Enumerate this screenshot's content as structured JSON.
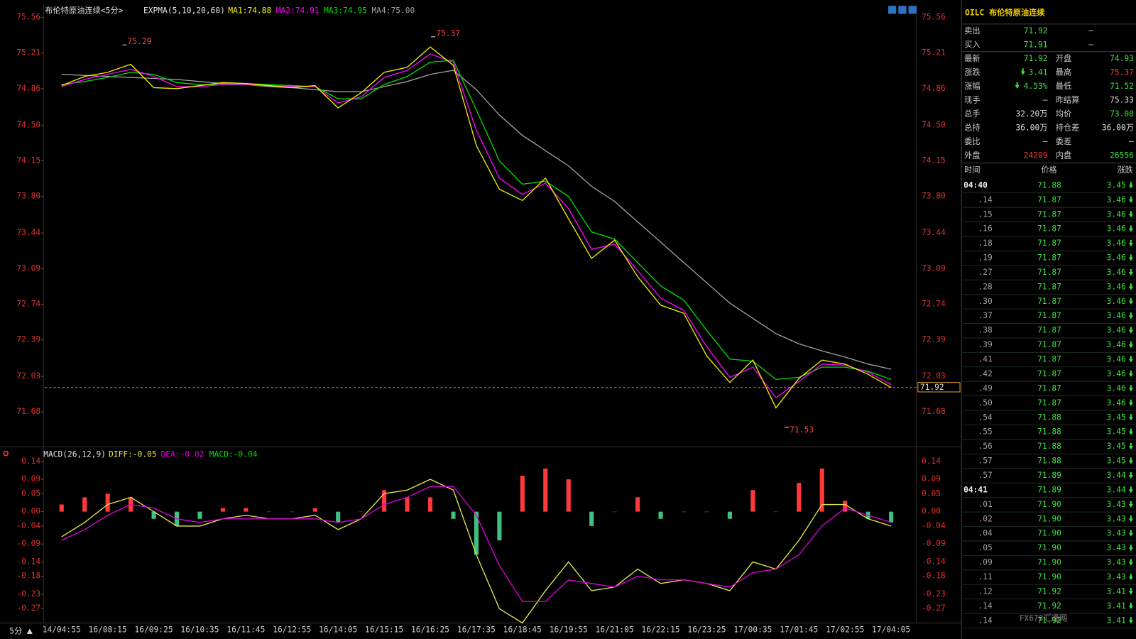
{
  "chart_data": [
    {
      "type": "line",
      "title": "布伦特原油连续<5分>",
      "indicator": "EXPMA(5,10,20,60)",
      "ylim": [
        71.68,
        75.56
      ],
      "yticks": [
        71.68,
        72.03,
        72.39,
        72.74,
        73.09,
        73.44,
        {
          "value": 73.8,
          "label": "73.80"
        },
        74.15,
        {
          "value": 74.5,
          "label": "74.50"
        },
        74.86,
        75.21,
        75.56
      ],
      "grid": false,
      "last_price": 71.92,
      "extremes": [
        75.29,
        75.37,
        71.53
      ],
      "series": [
        {
          "name": "MA1:74.88",
          "color": "#f0f000",
          "values": [
            74.89,
            74.98,
            75.02,
            75.1,
            74.87,
            74.86,
            74.89,
            74.92,
            74.91,
            74.89,
            74.87,
            74.89,
            74.67,
            74.82,
            75.02,
            75.07,
            75.27,
            75.09,
            74.3,
            73.87,
            73.76,
            73.98,
            73.58,
            73.19,
            73.37,
            73.01,
            72.73,
            72.65,
            72.23,
            71.97,
            72.19,
            71.72,
            72.01,
            72.19,
            72.15,
            72.05,
            71.92
          ]
        },
        {
          "name": "MA2:74.91",
          "color": "#ff00ff",
          "values": [
            74.88,
            74.95,
            75.0,
            75.05,
            74.98,
            74.88,
            74.88,
            74.9,
            74.9,
            74.89,
            74.88,
            74.88,
            74.72,
            74.78,
            74.97,
            75.04,
            75.2,
            75.12,
            74.45,
            73.98,
            73.82,
            73.93,
            73.68,
            73.28,
            73.33,
            73.07,
            72.8,
            72.68,
            72.32,
            72.02,
            72.12,
            71.82,
            71.98,
            72.15,
            72.14,
            72.07,
            71.95
          ]
        },
        {
          "name": "MA3:74.95",
          "color": "#00e000",
          "values": [
            74.9,
            74.93,
            74.97,
            75.02,
            75.0,
            74.92,
            74.9,
            74.9,
            74.91,
            74.9,
            74.89,
            74.88,
            74.76,
            74.76,
            74.9,
            74.98,
            75.12,
            75.14,
            74.65,
            74.15,
            73.92,
            73.95,
            73.8,
            73.45,
            73.38,
            73.15,
            72.92,
            72.78,
            72.48,
            72.2,
            72.18,
            72.0,
            72.02,
            72.12,
            72.12,
            72.08,
            72.0
          ]
        },
        {
          "name": "MA4:75.00",
          "color": "#a0a0a0",
          "values": [
            75.0,
            74.99,
            74.98,
            74.97,
            74.96,
            74.95,
            74.93,
            74.91,
            74.9,
            74.88,
            74.87,
            74.85,
            74.83,
            74.83,
            74.88,
            74.93,
            75.0,
            75.04,
            74.85,
            74.6,
            74.4,
            74.25,
            74.1,
            73.9,
            73.75,
            73.55,
            73.35,
            73.15,
            72.95,
            72.75,
            72.6,
            72.45,
            72.35,
            72.28,
            72.22,
            72.15,
            72.1
          ]
        }
      ]
    },
    {
      "type": "macd",
      "title": "MACD(26,12,9)",
      "categories": [
        "14/04:55",
        null,
        "16/08:15",
        null,
        "16/09:25",
        null,
        "16/10:35",
        null,
        "16/11:45",
        null,
        "16/12:55",
        null,
        "16/14:05",
        null,
        "16/15:15",
        null,
        "16/16:25",
        null,
        "16/17:35",
        null,
        "16/18:45",
        null,
        "16/19:55",
        null,
        "16/21:05",
        null,
        "16/22:15",
        null,
        "16/23:25",
        null,
        "17/00:35",
        null,
        "17/01:45",
        null,
        "17/02:55",
        null,
        "17/04:05"
      ],
      "ylim": [
        -0.31,
        0.15
      ],
      "yticks": [
        -0.27,
        -0.23,
        -0.18,
        -0.14,
        -0.09,
        -0.04,
        {
          "value": 0,
          "label": "0.00"
        },
        0.05,
        0.09,
        0.14
      ],
      "up_color": "#ff3838",
      "down_color": "#40c080",
      "series": [
        {
          "name": "DIFF:-0.05",
          "color": "#e8e850",
          "values": [
            -0.07,
            -0.03,
            0.02,
            0.04,
            0.0,
            -0.04,
            -0.04,
            -0.02,
            -0.01,
            -0.02,
            -0.02,
            -0.01,
            -0.05,
            -0.02,
            0.05,
            0.06,
            0.09,
            0.06,
            -0.12,
            -0.27,
            -0.31,
            -0.22,
            -0.14,
            -0.22,
            -0.21,
            -0.16,
            -0.2,
            -0.19,
            -0.2,
            -0.22,
            -0.14,
            -0.16,
            -0.08,
            0.02,
            0.02,
            -0.02,
            -0.04
          ]
        },
        {
          "name": "DEA:-0.02",
          "color": "#e000e0",
          "values": [
            -0.08,
            -0.05,
            -0.01,
            0.02,
            0.01,
            -0.02,
            -0.03,
            -0.02,
            -0.02,
            -0.02,
            -0.02,
            -0.02,
            -0.03,
            -0.02,
            0.02,
            0.04,
            0.07,
            0.07,
            -0.01,
            -0.15,
            -0.25,
            -0.25,
            -0.19,
            -0.2,
            -0.21,
            -0.18,
            -0.19,
            -0.19,
            -0.2,
            -0.21,
            -0.17,
            -0.16,
            -0.12,
            -0.04,
            0.01,
            -0.01,
            -0.03
          ]
        },
        {
          "name": "MACD:-0.04",
          "color": "#00e000",
          "bars": true,
          "values": [
            0.02,
            0.04,
            0.05,
            0.04,
            -0.02,
            -0.04,
            -0.02,
            0.01,
            0.01,
            0.0,
            0.0,
            0.01,
            -0.03,
            0.0,
            0.06,
            0.04,
            0.04,
            -0.02,
            -0.12,
            -0.08,
            0.1,
            0.12,
            0.09,
            -0.04,
            0.0,
            0.04,
            -0.02,
            0.0,
            0.0,
            -0.02,
            0.06,
            0.0,
            0.08,
            0.12,
            0.03,
            -0.02,
            -0.03
          ]
        }
      ]
    }
  ],
  "period_button": "5分",
  "panel": {
    "title": "OILC 布伦特原油连续",
    "quote": [
      {
        "cells": [
          "卖出",
          "71.92",
          "—"
        ],
        "colors": [
          "#c8c8c8",
          "#40e040",
          "#e0e0e0"
        ]
      },
      {
        "cells": [
          "买入",
          "71.91",
          "—"
        ],
        "colors": [
          "#c8c8c8",
          "#40e040",
          "#e0e0e0"
        ]
      },
      {
        "cells": [
          "最新",
          "71.92",
          "开盘",
          "74.93"
        ],
        "colors": [
          "#c8c8c8",
          "#40e040",
          "#c8c8c8",
          "#40e040"
        ]
      },
      {
        "cells": [
          "涨跌",
          "3.41",
          "最高",
          "75.37"
        ],
        "colors": [
          "#c8c8c8",
          "#40e040",
          "#c8c8c8",
          "#ff3838"
        ]
      },
      {
        "cells": [
          "涨幅",
          "4.53%",
          "最低",
          "71.52"
        ],
        "colors": [
          "#c8c8c8",
          "#40e040",
          "#c8c8c8",
          "#40e040"
        ]
      },
      {
        "cells": [
          "现手",
          "—",
          "昨结算",
          "75.33"
        ],
        "colors": [
          "#c8c8c8",
          "#e0e0e0",
          "#c8c8c8",
          "#e0e0e0"
        ]
      },
      {
        "cells": [
          "总手",
          "32.20万",
          "均价",
          "73.08"
        ],
        "colors": [
          "#c8c8c8",
          "#e0e0e0",
          "#c8c8c8",
          "#40e040"
        ]
      },
      {
        "cells": [
          "总持",
          "36.00万",
          "持仓差",
          "36.00万"
        ],
        "colors": [
          "#c8c8c8",
          "#e0e0e0",
          "#c8c8c8",
          "#e0e0e0"
        ]
      },
      {
        "cells": [
          "委比",
          "—",
          "委差",
          "—"
        ],
        "colors": [
          "#c8c8c8",
          "#e0e0e0",
          "#c8c8c8",
          "#e0e0e0"
        ]
      },
      {
        "cells": [
          "外盘",
          "24209",
          "内盘",
          "26556"
        ],
        "colors": [
          "#c8c8c8",
          "#ff3838",
          "#c8c8c8",
          "#40e040"
        ]
      }
    ],
    "trades_header": [
      "时间",
      "价格",
      "涨跌"
    ],
    "trades": [
      [
        "04:40",
        "71.88",
        "3.45"
      ],
      [
        ".14",
        "71.87",
        "3.46"
      ],
      [
        ".15",
        "71.87",
        "3.46"
      ],
      [
        ".16",
        "71.87",
        "3.46"
      ],
      [
        ".18",
        "71.87",
        "3.46"
      ],
      [
        ".19",
        "71.87",
        "3.46"
      ],
      [
        ".27",
        "71.87",
        "3.46"
      ],
      [
        ".28",
        "71.87",
        "3.46"
      ],
      [
        ".30",
        "71.87",
        "3.46"
      ],
      [
        ".37",
        "71.87",
        "3.46"
      ],
      [
        ".38",
        "71.87",
        "3.46"
      ],
      [
        ".39",
        "71.87",
        "3.46"
      ],
      [
        ".41",
        "71.87",
        "3.46"
      ],
      [
        ".42",
        "71.87",
        "3.46"
      ],
      [
        ".49",
        "71.87",
        "3.46"
      ],
      [
        ".50",
        "71.87",
        "3.46"
      ],
      [
        ".54",
        "71.88",
        "3.45"
      ],
      [
        ".55",
        "71.88",
        "3.45"
      ],
      [
        ".56",
        "71.88",
        "3.45"
      ],
      [
        ".57",
        "71.88",
        "3.45"
      ],
      [
        ".57",
        "71.89",
        "3.44"
      ],
      [
        "04:41",
        "71.89",
        "3.44"
      ],
      [
        ".01",
        "71.90",
        "3.43"
      ],
      [
        ".02",
        "71.90",
        "3.43"
      ],
      [
        ".04",
        "71.90",
        "3.43"
      ],
      [
        ".05",
        "71.90",
        "3.43"
      ],
      [
        ".09",
        "71.90",
        "3.43"
      ],
      [
        ".11",
        "71.90",
        "3.43"
      ],
      [
        ".12",
        "71.92",
        "3.41"
      ],
      [
        ".14",
        "71.92",
        "3.41"
      ],
      [
        ".14",
        "71.92",
        "3.41"
      ]
    ]
  },
  "watermark": "FX678汇通网"
}
